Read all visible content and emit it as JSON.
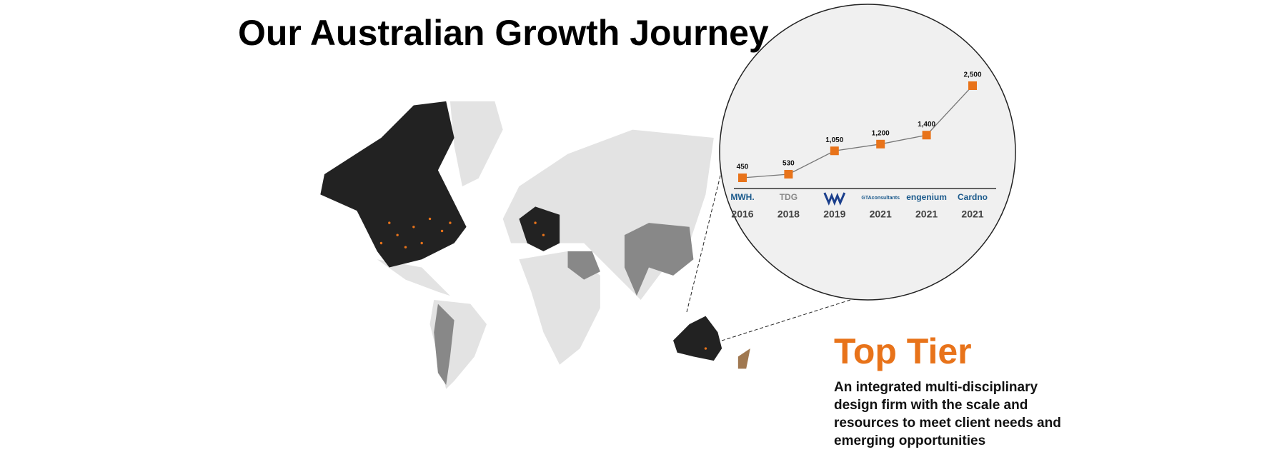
{
  "title": "Our Australian Growth Journey",
  "chart_data": {
    "type": "line",
    "categories": [
      "2016",
      "2018",
      "2019",
      "2021",
      "2021",
      "2021"
    ],
    "logos": [
      "MWH.",
      "TDG",
      null,
      "GTAconsultants",
      "engenium",
      "Cardno"
    ],
    "values": [
      450,
      530,
      1050,
      1200,
      1400,
      2500
    ],
    "value_labels": [
      "450",
      "530",
      "1,050",
      "1,200",
      "1,400",
      "2,500"
    ],
    "color": "#e8731a",
    "line_color": "#777777"
  },
  "callout": {
    "heading": "Top Tier",
    "lines": [
      "An integrated multi-disciplinary",
      "design firm with the scale and",
      "resources to meet client needs and",
      "emerging opportunities"
    ]
  }
}
